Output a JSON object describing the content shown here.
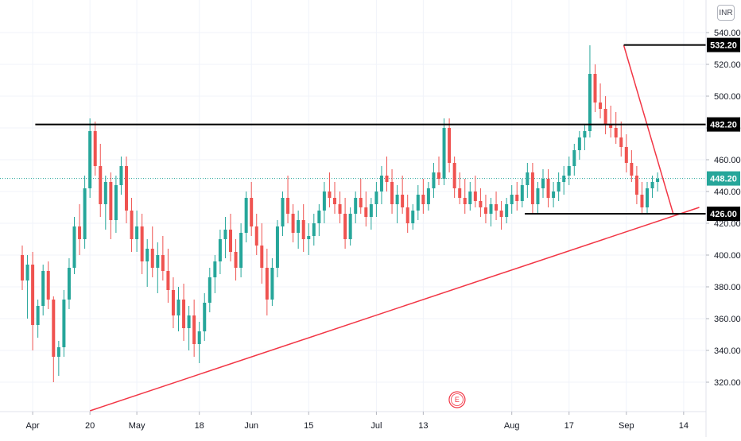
{
  "currency": "INR",
  "colors": {
    "up": "#26a69a",
    "down": "#ef5350",
    "horizontal_line": "#000000",
    "trend_line": "#f23645",
    "last_price_line": "#26a69a",
    "grid": "#f0f3fa",
    "axis_text": "#131722",
    "badge_bg": "#000000",
    "badge_text": "#ffffff",
    "last_badge_bg": "#26a69a"
  },
  "earnings_marker": "E",
  "chart_data": {
    "type": "candlestick",
    "ylim": [
      300,
      550
    ],
    "y_ticks": [
      320,
      340,
      360,
      380,
      400,
      420,
      440,
      460,
      480,
      500,
      520,
      540
    ],
    "y_tick_labels": [
      "320.00",
      "340.00",
      "360.00",
      "380.00",
      "400.00",
      "420.00",
      "440.00",
      "460.00",
      "480.00",
      "500.00",
      "520.00",
      "540.00"
    ],
    "x_range": [
      0,
      127
    ],
    "x_ticks": [
      {
        "label": "Apr",
        "x": 2
      },
      {
        "label": "20",
        "x": 13
      },
      {
        "label": "May",
        "x": 22
      },
      {
        "label": "18",
        "x": 34
      },
      {
        "label": "Jun",
        "x": 44
      },
      {
        "label": "15",
        "x": 55
      },
      {
        "label": "Jul",
        "x": 68
      },
      {
        "label": "13",
        "x": 77
      },
      {
        "label": "Aug",
        "x": 94
      },
      {
        "label": "17",
        "x": 105
      },
      {
        "label": "Sep",
        "x": 116
      },
      {
        "label": "14",
        "x": 127
      }
    ],
    "horizontal_levels": [
      {
        "value": 532.2,
        "label": "532.20",
        "x_start": 115.5
      },
      {
        "value": 482.2,
        "label": "482.20",
        "x_start": 2.5
      },
      {
        "value": 426.0,
        "label": "426.00",
        "x_start": 96.5
      }
    ],
    "last_price": {
      "value": 448.2,
      "label": "448.20"
    },
    "trend_lines": [
      {
        "from": [
          13,
          302
        ],
        "to": [
          130,
          430
        ]
      },
      {
        "from": [
          115.5,
          532
        ],
        "to": [
          125,
          426
        ]
      }
    ],
    "earnings_x": 83.5,
    "ohlc": [
      [
        400,
        406,
        378,
        384
      ],
      [
        384,
        400,
        360,
        394
      ],
      [
        394,
        402,
        340,
        356
      ],
      [
        356,
        372,
        348,
        368
      ],
      [
        368,
        394,
        362,
        390
      ],
      [
        390,
        396,
        366,
        372
      ],
      [
        372,
        374,
        320,
        336
      ],
      [
        336,
        346,
        324,
        342
      ],
      [
        342,
        378,
        336,
        372
      ],
      [
        372,
        398,
        366,
        392
      ],
      [
        392,
        424,
        388,
        418
      ],
      [
        418,
        432,
        400,
        410
      ],
      [
        410,
        450,
        404,
        442
      ],
      [
        442,
        486,
        436,
        478
      ],
      [
        478,
        484,
        450,
        456
      ],
      [
        456,
        470,
        424,
        432
      ],
      [
        432,
        450,
        416,
        446
      ],
      [
        446,
        452,
        410,
        422
      ],
      [
        422,
        450,
        414,
        444
      ],
      [
        444,
        462,
        438,
        456
      ],
      [
        456,
        462,
        420,
        428
      ],
      [
        428,
        436,
        402,
        410
      ],
      [
        410,
        428,
        402,
        418
      ],
      [
        418,
        426,
        388,
        396
      ],
      [
        396,
        410,
        380,
        404
      ],
      [
        404,
        418,
        386,
        392
      ],
      [
        392,
        408,
        376,
        400
      ],
      [
        400,
        412,
        384,
        390
      ],
      [
        390,
        404,
        370,
        378
      ],
      [
        378,
        386,
        354,
        362
      ],
      [
        362,
        380,
        352,
        372
      ],
      [
        372,
        382,
        346,
        354
      ],
      [
        354,
        368,
        340,
        362
      ],
      [
        362,
        372,
        336,
        344
      ],
      [
        344,
        358,
        332,
        352
      ],
      [
        352,
        376,
        346,
        370
      ],
      [
        370,
        392,
        364,
        386
      ],
      [
        386,
        400,
        376,
        396
      ],
      [
        396,
        416,
        388,
        410
      ],
      [
        410,
        424,
        398,
        416
      ],
      [
        416,
        426,
        396,
        402
      ],
      [
        402,
        410,
        384,
        392
      ],
      [
        392,
        420,
        386,
        414
      ],
      [
        414,
        440,
        408,
        436
      ],
      [
        436,
        446,
        412,
        418
      ],
      [
        418,
        426,
        400,
        406
      ],
      [
        406,
        420,
        382,
        392
      ],
      [
        392,
        404,
        362,
        372
      ],
      [
        372,
        398,
        368,
        392
      ],
      [
        392,
        422,
        386,
        418
      ],
      [
        418,
        440,
        412,
        436
      ],
      [
        436,
        450,
        420,
        426
      ],
      [
        426,
        432,
        408,
        414
      ],
      [
        414,
        428,
        404,
        422
      ],
      [
        422,
        432,
        402,
        410
      ],
      [
        410,
        420,
        400,
        412
      ],
      [
        412,
        426,
        406,
        420
      ],
      [
        420,
        432,
        412,
        428
      ],
      [
        428,
        446,
        420,
        440
      ],
      [
        440,
        452,
        430,
        436
      ],
      [
        436,
        446,
        426,
        432
      ],
      [
        432,
        440,
        420,
        426
      ],
      [
        426,
        436,
        404,
        410
      ],
      [
        410,
        430,
        406,
        426
      ],
      [
        426,
        440,
        420,
        436
      ],
      [
        436,
        448,
        426,
        430
      ],
      [
        430,
        440,
        418,
        424
      ],
      [
        424,
        436,
        416,
        432
      ],
      [
        432,
        446,
        424,
        440
      ],
      [
        440,
        456,
        432,
        450
      ],
      [
        450,
        462,
        440,
        446
      ],
      [
        446,
        454,
        426,
        432
      ],
      [
        432,
        444,
        420,
        438
      ],
      [
        438,
        450,
        426,
        430
      ],
      [
        430,
        438,
        414,
        420
      ],
      [
        420,
        432,
        416,
        428
      ],
      [
        428,
        444,
        422,
        438
      ],
      [
        438,
        448,
        426,
        432
      ],
      [
        432,
        446,
        428,
        442
      ],
      [
        442,
        458,
        436,
        452
      ],
      [
        452,
        462,
        444,
        448
      ],
      [
        448,
        486,
        444,
        480
      ],
      [
        480,
        486,
        452,
        458
      ],
      [
        458,
        462,
        436,
        442
      ],
      [
        442,
        452,
        432,
        436
      ],
      [
        436,
        448,
        426,
        432
      ],
      [
        432,
        446,
        428,
        440
      ],
      [
        440,
        450,
        430,
        434
      ],
      [
        434,
        442,
        424,
        430
      ],
      [
        430,
        438,
        420,
        426
      ],
      [
        426,
        436,
        418,
        432
      ],
      [
        432,
        440,
        422,
        428
      ],
      [
        428,
        434,
        416,
        424
      ],
      [
        424,
        436,
        420,
        432
      ],
      [
        432,
        444,
        426,
        438
      ],
      [
        438,
        446,
        428,
        434
      ],
      [
        434,
        448,
        430,
        444
      ],
      [
        444,
        458,
        436,
        452
      ],
      [
        452,
        458,
        426,
        432
      ],
      [
        432,
        446,
        426,
        442
      ],
      [
        442,
        454,
        436,
        448
      ],
      [
        448,
        454,
        430,
        436
      ],
      [
        436,
        446,
        430,
        440
      ],
      [
        440,
        452,
        434,
        446
      ],
      [
        446,
        456,
        438,
        450
      ],
      [
        450,
        462,
        444,
        456
      ],
      [
        456,
        470,
        450,
        466
      ],
      [
        466,
        478,
        460,
        474
      ],
      [
        474,
        482,
        466,
        478
      ],
      [
        478,
        532,
        474,
        514
      ],
      [
        514,
        520,
        490,
        496
      ],
      [
        496,
        508,
        486,
        492
      ],
      [
        492,
        500,
        476,
        482
      ],
      [
        482,
        494,
        474,
        480
      ],
      [
        480,
        490,
        470,
        474
      ],
      [
        474,
        484,
        462,
        468
      ],
      [
        468,
        476,
        452,
        458
      ],
      [
        458,
        466,
        446,
        450
      ],
      [
        450,
        456,
        432,
        438
      ],
      [
        438,
        446,
        426,
        430
      ],
      [
        430,
        446,
        426,
        442
      ],
      [
        442,
        450,
        436,
        446
      ],
      [
        446,
        452,
        440,
        448
      ]
    ]
  }
}
